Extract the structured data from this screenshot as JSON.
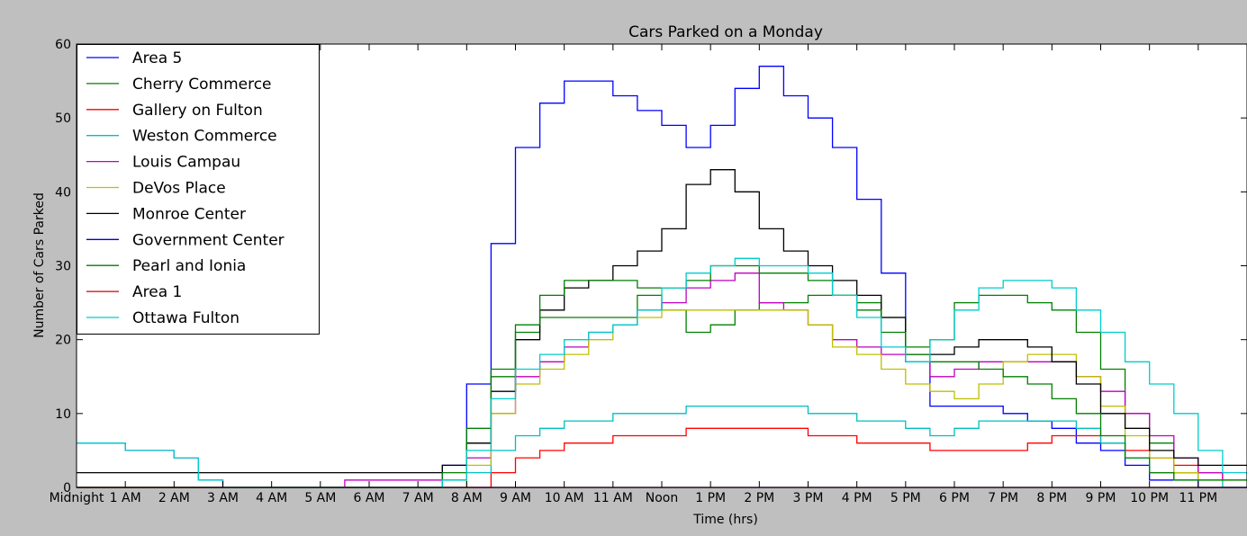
{
  "colors": {
    "figure_background": "#bfbfbf",
    "axes_background": "#ffffff"
  },
  "chart_data": {
    "type": "line",
    "title": "Cars Parked on a Monday",
    "xlabel": "Time (hrs)",
    "ylabel": "Number of Cars Parked",
    "x_unit": "hours after midnight",
    "xlim": [
      0,
      24
    ],
    "ylim": [
      0,
      60
    ],
    "yticks": [
      0,
      10,
      20,
      30,
      40,
      50,
      60
    ],
    "xtick_labels": [
      "Midnight",
      "1 AM",
      "2 AM",
      "3 AM",
      "4 AM",
      "5 AM",
      "6 AM",
      "7 AM",
      "8 AM",
      "9 AM",
      "10 AM",
      "11 AM",
      "Noon",
      "1 PM",
      "2 PM",
      "3 PM",
      "4 PM",
      "5 PM",
      "6 PM",
      "7 PM",
      "8 PM",
      "9 PM",
      "10 PM",
      "11 PM"
    ],
    "grid": false,
    "legend_position": "top-left",
    "series": [
      {
        "name": "Area 5",
        "color": "#0000ff",
        "x": [
          0,
          7,
          7.5,
          8,
          8.5,
          9,
          9.5,
          10,
          10.5,
          11,
          11.5,
          12,
          12.5,
          13,
          13.5,
          14,
          14.5,
          15,
          15.5,
          16,
          16.5,
          17,
          17.5,
          18,
          18.5,
          19,
          19.5,
          20,
          20.5,
          21,
          21.5,
          22,
          22.5,
          23,
          23.5,
          24
        ],
        "y": [
          0,
          0,
          3,
          14,
          33,
          46,
          52,
          55,
          55,
          53,
          51,
          49,
          46,
          49,
          54,
          57,
          53,
          50,
          46,
          39,
          29,
          17,
          11,
          11,
          11,
          10,
          9,
          8,
          6,
          5,
          3,
          1,
          1,
          0,
          0,
          0
        ]
      },
      {
        "name": "Cherry Commerce",
        "color": "#008000",
        "x": [
          0,
          7,
          7.5,
          8,
          8.5,
          9,
          9.5,
          10,
          10.5,
          11,
          11.5,
          12,
          12.5,
          13,
          13.5,
          14,
          14.5,
          15,
          15.5,
          16,
          16.5,
          17,
          17.5,
          18,
          18.5,
          19,
          19.5,
          20,
          20.5,
          21,
          21.5,
          22,
          22.5,
          23,
          23.5,
          24
        ],
        "y": [
          0,
          0,
          1,
          6,
          15,
          21,
          23,
          23,
          23,
          23,
          26,
          24,
          21,
          22,
          24,
          25,
          25,
          26,
          26,
          25,
          23,
          19,
          20,
          25,
          26,
          26,
          25,
          24,
          21,
          16,
          10,
          6,
          2,
          1,
          1,
          1
        ]
      },
      {
        "name": "Gallery on Fulton",
        "color": "#ff0000",
        "x": [
          0,
          7,
          8,
          8.5,
          9,
          9.5,
          10,
          10.5,
          11,
          11.5,
          12,
          12.5,
          13,
          13.5,
          14,
          14.5,
          15,
          15.5,
          16,
          16.5,
          17,
          17.5,
          18,
          18.5,
          19,
          19.5,
          20,
          20.5,
          21,
          21.5,
          22,
          22.5,
          23,
          23.5,
          24
        ],
        "y": [
          0,
          0,
          0,
          2,
          4,
          5,
          6,
          6,
          7,
          7,
          7,
          8,
          8,
          8,
          8,
          8,
          7,
          7,
          6,
          6,
          6,
          5,
          5,
          5,
          5,
          6,
          7,
          7,
          6,
          5,
          4,
          3,
          2,
          1,
          1
        ]
      },
      {
        "name": "Weston Commerce",
        "color": "#00bfbf",
        "x": [
          0,
          7,
          8,
          8.5,
          9,
          9.5,
          10,
          10.5,
          11,
          11.5,
          12,
          12.5,
          13,
          13.5,
          14,
          14.5,
          15,
          15.5,
          16,
          16.5,
          17,
          17.5,
          18,
          18.5,
          19,
          19.5,
          20,
          20.5,
          21,
          21.5,
          22,
          22.5,
          23,
          23.5,
          24
        ],
        "y": [
          0,
          0,
          2,
          5,
          7,
          8,
          9,
          9,
          10,
          10,
          10,
          11,
          11,
          11,
          11,
          11,
          10,
          10,
          9,
          9,
          8,
          7,
          8,
          9,
          9,
          9,
          9,
          8,
          6,
          4,
          2,
          1,
          1,
          0,
          0
        ]
      },
      {
        "name": "Louis Campau",
        "color": "#bf00bf",
        "x": [
          0,
          0.5,
          1,
          1.5,
          2,
          2.5,
          3,
          5,
          5.5,
          6,
          7,
          7.5,
          8,
          8.5,
          9,
          9.5,
          10,
          10.5,
          11,
          11.5,
          12,
          12.5,
          13,
          13.5,
          14,
          14.5,
          15,
          15.5,
          16,
          16.5,
          17,
          17.5,
          18,
          18.5,
          19,
          19.5,
          20,
          20.5,
          21,
          21.5,
          22,
          22.5,
          23,
          23.5,
          24
        ],
        "y": [
          6,
          6,
          5,
          5,
          4,
          1,
          0,
          0,
          1,
          1,
          1,
          1,
          4,
          10,
          15,
          17,
          19,
          21,
          22,
          24,
          25,
          27,
          28,
          29,
          25,
          24,
          22,
          20,
          19,
          18,
          17,
          15,
          16,
          17,
          17,
          17,
          17,
          15,
          13,
          10,
          7,
          4,
          2,
          1,
          1
        ]
      },
      {
        "name": "DeVos Place",
        "color": "#bfbf00",
        "x": [
          0,
          7,
          7.5,
          8,
          8.5,
          9,
          9.5,
          10,
          10.5,
          11,
          11.5,
          12,
          12.5,
          13,
          13.5,
          14,
          14.5,
          15,
          15.5,
          16,
          16.5,
          17,
          17.5,
          18,
          18.5,
          19,
          19.5,
          20,
          20.5,
          21,
          21.5,
          22,
          22.5,
          23,
          23.5,
          24
        ],
        "y": [
          0,
          0,
          0,
          3,
          10,
          14,
          16,
          18,
          20,
          22,
          23,
          24,
          24,
          24,
          24,
          24,
          24,
          22,
          19,
          18,
          16,
          14,
          13,
          12,
          14,
          17,
          18,
          18,
          15,
          11,
          7,
          4,
          2,
          1,
          1,
          1
        ]
      },
      {
        "name": "Monroe Center",
        "color": "#000000",
        "x": [
          0,
          3,
          7,
          7.5,
          8,
          8.5,
          9,
          9.5,
          10,
          10.5,
          11,
          11.5,
          12,
          12.5,
          13,
          13.5,
          14,
          14.5,
          15,
          15.5,
          16,
          16.5,
          17,
          17.5,
          18,
          18.5,
          19,
          19.5,
          20,
          20.5,
          21,
          21.5,
          22,
          22.5,
          23,
          23.5,
          24
        ],
        "y": [
          2,
          2,
          2,
          3,
          6,
          13,
          20,
          24,
          27,
          28,
          30,
          32,
          35,
          41,
          43,
          40,
          35,
          32,
          30,
          28,
          26,
          23,
          18,
          18,
          19,
          20,
          20,
          19,
          17,
          14,
          10,
          8,
          5,
          4,
          3,
          3,
          3
        ]
      },
      {
        "name": "Government Center",
        "color": "#0000cc",
        "x": [
          0,
          24
        ],
        "y": [
          0,
          0
        ]
      },
      {
        "name": "Pearl and Ionia",
        "color": "#007f00",
        "x": [
          0,
          7,
          7.5,
          8,
          8.5,
          9,
          9.5,
          10,
          10.5,
          11,
          11.5,
          12,
          12.5,
          13,
          13.5,
          14,
          14.5,
          15,
          15.5,
          16,
          16.5,
          17,
          17.5,
          18,
          18.5,
          19,
          19.5,
          20,
          20.5,
          21,
          21.5,
          22,
          22.5,
          23,
          23.5,
          24
        ],
        "y": [
          0,
          0,
          2,
          8,
          16,
          22,
          26,
          28,
          28,
          28,
          27,
          27,
          28,
          30,
          30,
          29,
          29,
          28,
          26,
          24,
          21,
          18,
          17,
          17,
          16,
          15,
          14,
          12,
          10,
          7,
          4,
          2,
          1,
          1,
          1,
          1
        ]
      },
      {
        "name": "Area 1",
        "color": "#cc0000",
        "x": [
          0,
          24
        ],
        "y": [
          0,
          0
        ]
      },
      {
        "name": "Ottawa Fulton",
        "color": "#00cccc",
        "x": [
          0,
          0.5,
          1,
          1.5,
          2,
          2.5,
          3,
          7,
          7.5,
          8,
          8.5,
          9,
          9.5,
          10,
          10.5,
          11,
          11.5,
          12,
          12.5,
          13,
          13.5,
          14,
          14.5,
          15,
          15.5,
          16,
          16.5,
          17,
          17.5,
          18,
          18.5,
          19,
          19.5,
          20,
          20.5,
          21,
          21.5,
          22,
          22.5,
          23,
          23.5,
          24
        ],
        "y": [
          6,
          6,
          5,
          5,
          4,
          1,
          0,
          0,
          1,
          5,
          12,
          16,
          18,
          20,
          21,
          22,
          24,
          27,
          29,
          30,
          31,
          30,
          30,
          29,
          26,
          23,
          19,
          17,
          20,
          24,
          27,
          28,
          28,
          27,
          24,
          21,
          17,
          14,
          10,
          5,
          2,
          1
        ]
      }
    ]
  }
}
